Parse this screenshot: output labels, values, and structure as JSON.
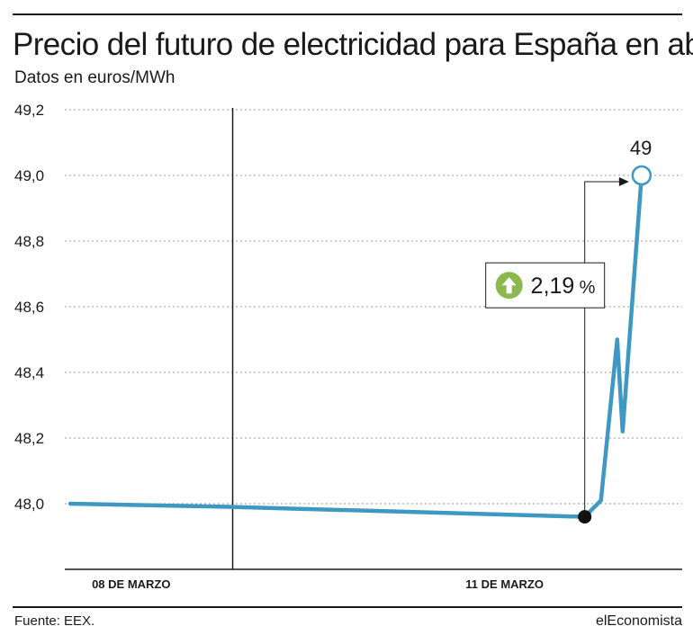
{
  "header": {
    "title": "Precio del futuro de electricidad para España en abril",
    "subtitle": "Datos en euros/MWh"
  },
  "footer": {
    "source": "Fuente: EEX.",
    "brand": "elEconomista"
  },
  "colors": {
    "line": "#3f98c2",
    "grid": "#9a9a9a",
    "axis": "#1a1a1a",
    "arrow_badge": "#8cb84e"
  },
  "chart_data": {
    "type": "line",
    "title": "Precio del futuro de electricidad para España en abril",
    "subtitle": "Datos en euros/MWh",
    "xlabel": "",
    "ylabel": "",
    "ylim": [
      47.8,
      49.2
    ],
    "yticks": [
      48.0,
      48.2,
      48.4,
      48.6,
      48.8,
      49.0,
      49.2
    ],
    "ytick_labels": [
      "48,0",
      "48,2",
      "48,4",
      "48,6",
      "48,8",
      "49,0",
      "49,2"
    ],
    "grid": true,
    "categories": [
      "08 DE MARZO",
      "11 DE MARZO"
    ],
    "series": [
      {
        "values": [
          {
            "x": 0.0,
            "y": 48.0
          },
          {
            "x": 3.0,
            "y": 47.99
          },
          {
            "x": 9.5,
            "y": 47.96
          },
          {
            "x": 9.8,
            "y": 48.01
          },
          {
            "x": 10.1,
            "y": 48.5
          },
          {
            "x": 10.2,
            "y": 48.22
          },
          {
            "x": 10.55,
            "y": 49.0
          }
        ]
      }
    ],
    "xlim": [
      -0.1,
      11.3
    ],
    "category_x": [
      0.4,
      7.3
    ],
    "divider_x": 3.0,
    "start_marker": {
      "x": 9.5,
      "y": 47.96
    },
    "end_marker": {
      "x": 10.55,
      "y": 49.0
    },
    "end_label": "49",
    "annotation": {
      "direction": "up",
      "value": "2,19",
      "unit": "%"
    }
  }
}
